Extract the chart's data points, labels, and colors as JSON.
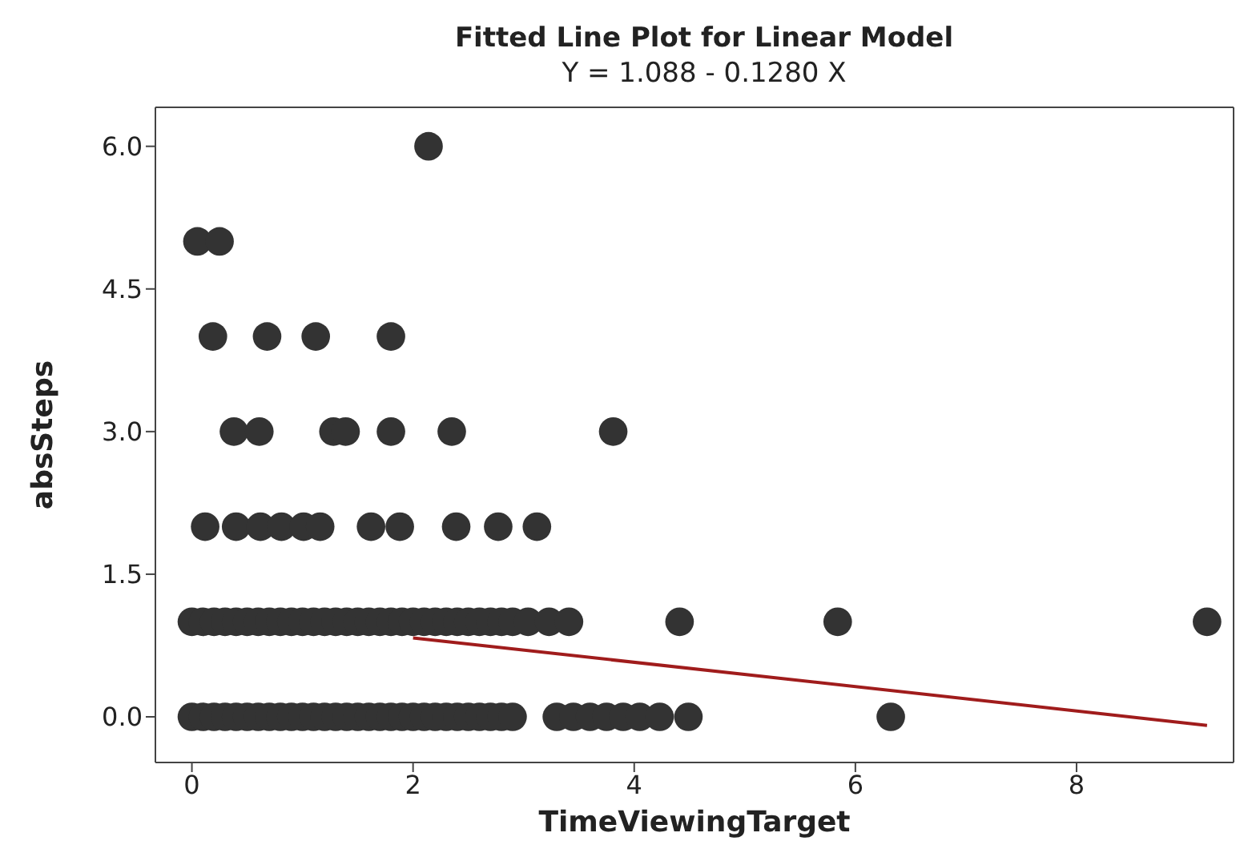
{
  "chart_data": {
    "type": "scatter",
    "title": "Fitted Line Plot for Linear Model",
    "subtitle": "Y = 1.088 - 0.1280 X",
    "xlabel": "TimeViewingTarget",
    "ylabel": "absSteps",
    "xlim": [
      -0.33,
      9.42
    ],
    "ylim": [
      -0.48,
      6.41
    ],
    "xticks": [
      0,
      2,
      4,
      6,
      8
    ],
    "yticks": [
      {
        "value": 0,
        "label": "0.0"
      },
      {
        "value": 1.5,
        "label": "1.5"
      },
      {
        "value": 3,
        "label": "3.0"
      },
      {
        "value": 4.5,
        "label": "4.5"
      },
      {
        "value": 6,
        "label": "6.0"
      }
    ],
    "grid": false,
    "legend": false,
    "marker": "circle",
    "series": [
      {
        "color": "#333333",
        "x": [
          0,
          0.1,
          0.2,
          0.3,
          0.4,
          0.5,
          0.6,
          0.7,
          0.8,
          0.9,
          1.0,
          1.1,
          1.2,
          1.3,
          1.4,
          1.5,
          1.6,
          1.7,
          1.8,
          1.9,
          2.0,
          2.1,
          2.2,
          2.3,
          2.4,
          2.5,
          2.6,
          2.7,
          2.8,
          2.9,
          3.3,
          3.45,
          3.6,
          3.75,
          3.9,
          4.05,
          4.23,
          4.49,
          6.32,
          0,
          0.1,
          0.2,
          0.3,
          0.4,
          0.5,
          0.6,
          0.7,
          0.8,
          0.9,
          1.0,
          1.1,
          1.2,
          1.3,
          1.4,
          1.5,
          1.6,
          1.7,
          1.8,
          1.9,
          2.0,
          2.1,
          2.2,
          2.3,
          2.4,
          2.5,
          2.6,
          2.7,
          2.8,
          2.9,
          3.04,
          3.23,
          3.41,
          4.41,
          5.84,
          9.18,
          0.12,
          0.4,
          0.62,
          0.81,
          1.01,
          1.16,
          1.62,
          1.88,
          2.39,
          2.77,
          3.12,
          0.38,
          0.61,
          1.28,
          1.39,
          1.8,
          2.35,
          3.81,
          0.19,
          0.68,
          1.12,
          1.8,
          0.05,
          0.25,
          2.14
        ],
        "values": [
          0,
          0,
          0,
          0,
          0,
          0,
          0,
          0,
          0,
          0,
          0,
          0,
          0,
          0,
          0,
          0,
          0,
          0,
          0,
          0,
          0,
          0,
          0,
          0,
          0,
          0,
          0,
          0,
          0,
          0,
          0,
          0,
          0,
          0,
          0,
          0,
          0,
          0,
          0,
          1,
          1,
          1,
          1,
          1,
          1,
          1,
          1,
          1,
          1,
          1,
          1,
          1,
          1,
          1,
          1,
          1,
          1,
          1,
          1,
          1,
          1,
          1,
          1,
          1,
          1,
          1,
          1,
          1,
          1,
          1,
          1,
          1,
          1,
          1,
          1,
          2,
          2,
          2,
          2,
          2,
          2,
          2,
          2,
          2,
          2,
          2,
          3,
          3,
          3,
          3,
          3,
          3,
          3,
          4,
          4,
          4,
          4,
          5,
          5,
          6
        ]
      },
      {
        "type": "line",
        "marker": "none",
        "color": "#a01c1c",
        "x": [
          2.0,
          9.18
        ],
        "values": [
          0.83,
          -0.09
        ]
      }
    ]
  }
}
